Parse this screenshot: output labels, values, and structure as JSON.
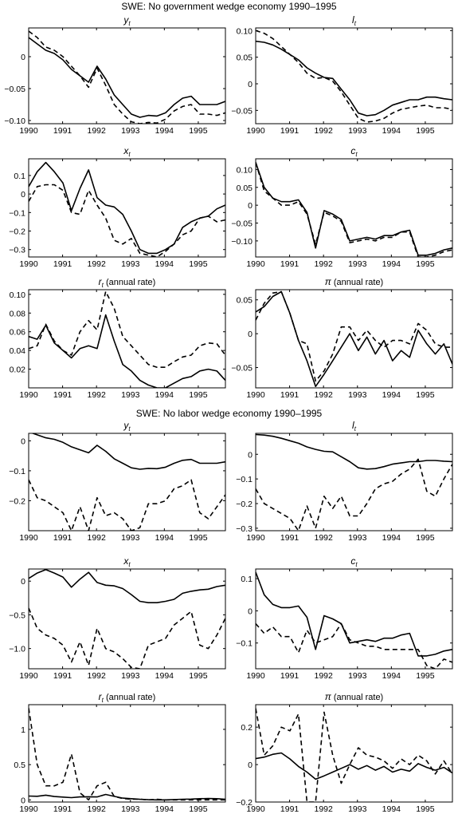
{
  "headings": [
    "SWE: No government wedge economy 1990–1995",
    "SWE: No labor wedge economy 1990–1995"
  ],
  "legend": [],
  "chart_data": [
    {
      "type": "line",
      "group": 0,
      "symbol": "y",
      "subscript": "t",
      "suffix": "",
      "xlim": [
        1990,
        1995.8
      ],
      "ylim": [
        -0.105,
        0.045
      ],
      "xticks": [
        "1990",
        "1991",
        "1992",
        "1993",
        "1994",
        "1995"
      ],
      "yticks": [
        0,
        -0.05,
        -0.1
      ],
      "yticklabels": [
        "0",
        "−0.05",
        "−0.10"
      ],
      "series": [
        {
          "style": "solid",
          "values": [
            0.03,
            0.02,
            0.01,
            0.005,
            -0.005,
            -0.02,
            -0.03,
            -0.04,
            -0.015,
            -0.035,
            -0.06,
            -0.075,
            -0.09,
            -0.095,
            -0.092,
            -0.093,
            -0.088,
            -0.075,
            -0.065,
            -0.062,
            -0.075,
            -0.075,
            -0.075,
            -0.07
          ]
        },
        {
          "style": "dashed",
          "values": [
            0.04,
            0.03,
            0.015,
            0.01,
            0.0,
            -0.015,
            -0.03,
            -0.048,
            -0.018,
            -0.045,
            -0.075,
            -0.09,
            -0.102,
            -0.105,
            -0.103,
            -0.104,
            -0.098,
            -0.085,
            -0.078,
            -0.075,
            -0.09,
            -0.09,
            -0.092,
            -0.088
          ]
        }
      ]
    },
    {
      "type": "line",
      "group": 0,
      "symbol": "l",
      "subscript": "t",
      "suffix": "",
      "xlim": [
        1990,
        1995.8
      ],
      "ylim": [
        -0.075,
        0.105
      ],
      "xticks": [
        "1990",
        "1991",
        "1992",
        "1993",
        "1994",
        "1995"
      ],
      "yticks": [
        0.1,
        0.05,
        0,
        -0.05
      ],
      "yticklabels": [
        "0.10",
        "0.05",
        "0",
        "−0.05"
      ],
      "series": [
        {
          "style": "solid",
          "values": [
            0.08,
            0.078,
            0.073,
            0.065,
            0.055,
            0.045,
            0.03,
            0.02,
            0.012,
            0.01,
            -0.01,
            -0.03,
            -0.055,
            -0.06,
            -0.058,
            -0.05,
            -0.04,
            -0.035,
            -0.03,
            -0.03,
            -0.025,
            -0.025,
            -0.028,
            -0.03
          ]
        },
        {
          "style": "dashed",
          "values": [
            0.1,
            0.095,
            0.085,
            0.07,
            0.055,
            0.04,
            0.02,
            0.01,
            0.012,
            0.005,
            -0.015,
            -0.04,
            -0.065,
            -0.072,
            -0.07,
            -0.065,
            -0.055,
            -0.048,
            -0.045,
            -0.042,
            -0.04,
            -0.045,
            -0.045,
            -0.048
          ]
        }
      ]
    },
    {
      "type": "line",
      "group": 0,
      "symbol": "x",
      "subscript": "t",
      "suffix": "",
      "xlim": [
        1990,
        1995.8
      ],
      "ylim": [
        -0.34,
        0.19
      ],
      "xticks": [
        "1990",
        "1991",
        "1992",
        "1993",
        "1994",
        "1995"
      ],
      "yticks": [
        0.1,
        0,
        -0.1,
        -0.2,
        -0.3
      ],
      "yticklabels": [
        "0.1",
        "0",
        "−0.1",
        "−0.2",
        "−0.3"
      ],
      "series": [
        {
          "style": "solid",
          "values": [
            0.04,
            0.12,
            0.17,
            0.12,
            0.06,
            -0.09,
            0.03,
            0.13,
            -0.02,
            -0.06,
            -0.07,
            -0.11,
            -0.2,
            -0.3,
            -0.32,
            -0.32,
            -0.3,
            -0.27,
            -0.18,
            -0.15,
            -0.13,
            -0.12,
            -0.08,
            -0.06
          ]
        },
        {
          "style": "dashed",
          "values": [
            -0.04,
            0.04,
            0.05,
            0.05,
            0.02,
            -0.1,
            -0.11,
            0.02,
            -0.06,
            -0.13,
            -0.25,
            -0.27,
            -0.24,
            -0.32,
            -0.33,
            -0.34,
            -0.31,
            -0.27,
            -0.22,
            -0.2,
            -0.13,
            -0.12,
            -0.15,
            -0.14
          ]
        }
      ]
    },
    {
      "type": "line",
      "group": 0,
      "symbol": "c",
      "subscript": "t",
      "suffix": "",
      "xlim": [
        1990,
        1995.8
      ],
      "ylim": [
        -0.145,
        0.13
      ],
      "xticks": [
        "1990",
        "1991",
        "1992",
        "1993",
        "1994",
        "1995"
      ],
      "yticks": [
        0.1,
        0.05,
        0,
        -0.05,
        -0.1
      ],
      "yticklabels": [
        "0.10",
        "0.05",
        "0",
        "−0.05",
        "−0.10"
      ],
      "series": [
        {
          "style": "solid",
          "values": [
            0.12,
            0.05,
            0.02,
            0.01,
            0.01,
            0.015,
            -0.02,
            -0.12,
            -0.015,
            -0.025,
            -0.04,
            -0.1,
            -0.095,
            -0.09,
            -0.095,
            -0.085,
            -0.085,
            -0.075,
            -0.07,
            -0.14,
            -0.14,
            -0.135,
            -0.125,
            -0.12
          ]
        },
        {
          "style": "dashed",
          "values": [
            0.12,
            0.04,
            0.02,
            0.0,
            0.0,
            0.01,
            -0.025,
            -0.11,
            -0.02,
            -0.03,
            -0.045,
            -0.105,
            -0.1,
            -0.095,
            -0.1,
            -0.09,
            -0.09,
            -0.075,
            -0.075,
            -0.145,
            -0.145,
            -0.14,
            -0.13,
            -0.125
          ]
        }
      ]
    },
    {
      "type": "line",
      "group": 0,
      "symbol": "r",
      "subscript": "t",
      "suffix": " (annual rate)",
      "xlim": [
        1990,
        1995.8
      ],
      "ylim": [
        0.0,
        0.105
      ],
      "xticks": [
        "1990",
        "1991",
        "1992",
        "1993",
        "1994",
        "1995"
      ],
      "yticks": [
        0.1,
        0.08,
        0.06,
        0.04,
        0.02
      ],
      "yticklabels": [
        "0.10",
        "0.08",
        "0.06",
        "0.04",
        "0.02"
      ],
      "series": [
        {
          "style": "solid",
          "values": [
            0.055,
            0.052,
            0.067,
            0.048,
            0.04,
            0.032,
            0.042,
            0.045,
            0.042,
            0.078,
            0.05,
            0.025,
            0.018,
            0.008,
            0.003,
            0.0,
            0.0,
            0.005,
            0.01,
            0.012,
            0.018,
            0.02,
            0.018,
            0.008
          ]
        },
        {
          "style": "dashed",
          "values": [
            0.042,
            0.045,
            0.068,
            0.05,
            0.04,
            0.035,
            0.06,
            0.072,
            0.062,
            0.103,
            0.085,
            0.055,
            0.045,
            0.035,
            0.025,
            0.022,
            0.022,
            0.028,
            0.033,
            0.035,
            0.045,
            0.048,
            0.047,
            0.035
          ]
        }
      ]
    },
    {
      "type": "line",
      "group": 0,
      "symbol": "π",
      "subscript": "",
      "suffix": " (annual rate)",
      "xlim": [
        1990,
        1995.8
      ],
      "ylim": [
        -0.08,
        0.065
      ],
      "xticks": [
        "1990",
        "1991",
        "1992",
        "1993",
        "1994",
        "1995"
      ],
      "yticks": [
        0.05,
        0,
        -0.05
      ],
      "yticklabels": [
        "0.05",
        "0",
        "−0.05"
      ],
      "series": [
        {
          "style": "solid",
          "values": [
            0.032,
            0.04,
            0.055,
            0.062,
            0.03,
            -0.01,
            -0.04,
            -0.078,
            -0.06,
            -0.04,
            -0.02,
            0.0,
            -0.025,
            -0.005,
            -0.03,
            -0.01,
            -0.04,
            -0.025,
            -0.035,
            0.005,
            -0.015,
            -0.03,
            -0.015,
            -0.045
          ]
        },
        {
          "style": "dashed",
          "values": [
            0.02,
            0.045,
            0.06,
            0.062,
            0.03,
            -0.01,
            -0.015,
            -0.07,
            -0.055,
            -0.03,
            0.01,
            0.01,
            -0.01,
            0.005,
            -0.01,
            -0.02,
            -0.01,
            -0.01,
            -0.015,
            0.015,
            0.005,
            -0.015,
            -0.02,
            -0.02
          ]
        }
      ]
    },
    {
      "type": "line",
      "group": 1,
      "symbol": "y",
      "subscript": "t",
      "suffix": "",
      "xlim": [
        1990,
        1995.8
      ],
      "ylim": [
        -0.3,
        0.025
      ],
      "xticks": [
        "1990",
        "1991",
        "1992",
        "1993",
        "1994",
        "1995"
      ],
      "yticks": [
        0,
        -0.1,
        -0.2
      ],
      "yticklabels": [
        "0",
        "−0.1",
        "−0.2"
      ],
      "series": [
        {
          "style": "solid",
          "values": [
            0.03,
            0.02,
            0.01,
            0.005,
            -0.005,
            -0.02,
            -0.03,
            -0.04,
            -0.015,
            -0.035,
            -0.06,
            -0.075,
            -0.09,
            -0.095,
            -0.092,
            -0.093,
            -0.088,
            -0.075,
            -0.065,
            -0.062,
            -0.075,
            -0.075,
            -0.075,
            -0.07
          ]
        },
        {
          "style": "dashed",
          "values": [
            -0.13,
            -0.19,
            -0.2,
            -0.22,
            -0.24,
            -0.3,
            -0.22,
            -0.3,
            -0.19,
            -0.25,
            -0.24,
            -0.26,
            -0.3,
            -0.29,
            -0.21,
            -0.21,
            -0.2,
            -0.16,
            -0.15,
            -0.13,
            -0.24,
            -0.26,
            -0.22,
            -0.18
          ]
        }
      ]
    },
    {
      "type": "line",
      "group": 1,
      "symbol": "l",
      "subscript": "t",
      "suffix": "",
      "xlim": [
        1990,
        1995.8
      ],
      "ylim": [
        -0.31,
        0.085
      ],
      "xticks": [
        "1990",
        "1991",
        "1992",
        "1993",
        "1994",
        "1995"
      ],
      "yticks": [
        0,
        -0.1,
        -0.2,
        -0.3
      ],
      "yticklabels": [
        "0",
        "−0.1",
        "−0.2",
        "−0.3"
      ],
      "series": [
        {
          "style": "solid",
          "values": [
            0.08,
            0.078,
            0.073,
            0.065,
            0.055,
            0.045,
            0.03,
            0.02,
            0.012,
            0.01,
            -0.01,
            -0.03,
            -0.055,
            -0.06,
            -0.058,
            -0.05,
            -0.04,
            -0.035,
            -0.03,
            -0.03,
            -0.025,
            -0.025,
            -0.028,
            -0.03
          ]
        },
        {
          "style": "dashed",
          "values": [
            -0.14,
            -0.2,
            -0.22,
            -0.24,
            -0.26,
            -0.31,
            -0.21,
            -0.3,
            -0.17,
            -0.22,
            -0.17,
            -0.25,
            -0.25,
            -0.2,
            -0.14,
            -0.12,
            -0.11,
            -0.08,
            -0.06,
            -0.02,
            -0.15,
            -0.17,
            -0.1,
            -0.04
          ]
        }
      ]
    },
    {
      "type": "line",
      "group": 1,
      "symbol": "x",
      "subscript": "t",
      "suffix": "",
      "xlim": [
        1990,
        1995.8
      ],
      "ylim": [
        -1.3,
        0.18
      ],
      "xticks": [
        "1990",
        "1991",
        "1992",
        "1993",
        "1994",
        "1995"
      ],
      "yticks": [
        0,
        -0.5,
        -1.0
      ],
      "yticklabels": [
        "0",
        "−0.5",
        "−1.0"
      ],
      "series": [
        {
          "style": "solid",
          "values": [
            0.04,
            0.12,
            0.17,
            0.12,
            0.06,
            -0.09,
            0.03,
            0.13,
            -0.02,
            -0.06,
            -0.07,
            -0.11,
            -0.2,
            -0.3,
            -0.32,
            -0.32,
            -0.3,
            -0.27,
            -0.18,
            -0.15,
            -0.13,
            -0.12,
            -0.08,
            -0.06
          ]
        },
        {
          "style": "dashed",
          "values": [
            -0.4,
            -0.7,
            -0.8,
            -0.85,
            -0.95,
            -1.2,
            -0.9,
            -1.25,
            -0.7,
            -1.0,
            -1.05,
            -1.15,
            -1.28,
            -1.3,
            -0.95,
            -0.9,
            -0.85,
            -0.65,
            -0.55,
            -0.45,
            -0.95,
            -1.0,
            -0.8,
            -0.55
          ]
        }
      ]
    },
    {
      "type": "line",
      "group": 1,
      "symbol": "c",
      "subscript": "t",
      "suffix": "",
      "xlim": [
        1990,
        1995.8
      ],
      "ylim": [
        -0.18,
        0.13
      ],
      "xticks": [
        "1990",
        "1991",
        "1992",
        "1993",
        "1994",
        "1995"
      ],
      "yticks": [
        0.1,
        0,
        -0.1
      ],
      "yticklabels": [
        "0.1",
        "0",
        "−0.1"
      ],
      "series": [
        {
          "style": "solid",
          "values": [
            0.12,
            0.05,
            0.02,
            0.01,
            0.01,
            0.015,
            -0.02,
            -0.12,
            -0.015,
            -0.025,
            -0.04,
            -0.1,
            -0.095,
            -0.09,
            -0.095,
            -0.085,
            -0.085,
            -0.075,
            -0.07,
            -0.14,
            -0.14,
            -0.135,
            -0.125,
            -0.12
          ]
        },
        {
          "style": "dashed",
          "values": [
            -0.04,
            -0.07,
            -0.05,
            -0.08,
            -0.08,
            -0.13,
            -0.06,
            -0.1,
            -0.09,
            -0.08,
            -0.04,
            -0.09,
            -0.1,
            -0.11,
            -0.11,
            -0.12,
            -0.12,
            -0.12,
            -0.12,
            -0.12,
            -0.17,
            -0.18,
            -0.15,
            -0.16
          ]
        }
      ]
    },
    {
      "type": "line",
      "group": 1,
      "symbol": "r",
      "subscript": "t",
      "suffix": " (annual rate)",
      "xlim": [
        1990,
        1995.8
      ],
      "ylim": [
        -0.03,
        1.35
      ],
      "xticks": [
        "1990",
        "1991",
        "1992",
        "1993",
        "1994",
        "1995"
      ],
      "yticks": [
        1.0,
        0.5,
        0
      ],
      "yticklabels": [
        "1",
        "0.5",
        "0"
      ],
      "series": [
        {
          "style": "solid",
          "values": [
            0.055,
            0.052,
            0.067,
            0.048,
            0.04,
            0.032,
            0.042,
            0.045,
            0.042,
            0.078,
            0.05,
            0.025,
            0.018,
            0.008,
            0.003,
            0.0,
            0.0,
            0.005,
            0.01,
            0.012,
            0.018,
            0.02,
            0.018,
            0.008
          ]
        },
        {
          "style": "dashed",
          "values": [
            1.3,
            0.5,
            0.2,
            0.2,
            0.25,
            0.65,
            0.1,
            0.0,
            0.2,
            0.25,
            0.05,
            0.02,
            0.01,
            0.01,
            0.0,
            0.01,
            0.0,
            0.0,
            0.0,
            0.0,
            0.0,
            0.0,
            0.0,
            0.0
          ]
        }
      ]
    },
    {
      "type": "line",
      "group": 1,
      "symbol": "π",
      "subscript": "",
      "suffix": " (annual rate)",
      "xlim": [
        1990,
        1995.8
      ],
      "ylim": [
        -0.2,
        0.32
      ],
      "xticks": [
        "1990",
        "1991",
        "1992",
        "1993",
        "1994",
        "1995"
      ],
      "yticks": [
        0.2,
        0,
        -0.2
      ],
      "yticklabels": [
        "0.2",
        "0",
        "−0.2"
      ],
      "series": [
        {
          "style": "solid",
          "values": [
            0.032,
            0.04,
            0.055,
            0.062,
            0.03,
            -0.01,
            -0.04,
            -0.078,
            -0.06,
            -0.04,
            -0.02,
            0.0,
            -0.025,
            -0.005,
            -0.03,
            -0.01,
            -0.04,
            -0.025,
            -0.035,
            0.005,
            -0.015,
            -0.03,
            -0.015,
            -0.045
          ]
        },
        {
          "style": "dashed",
          "values": [
            0.3,
            0.05,
            0.1,
            0.2,
            0.18,
            0.27,
            -0.2,
            -0.2,
            0.28,
            0.05,
            -0.1,
            0.0,
            0.09,
            0.05,
            0.04,
            0.02,
            -0.02,
            0.03,
            0.0,
            0.05,
            0.02,
            -0.05,
            0.02,
            -0.05
          ]
        }
      ]
    }
  ]
}
